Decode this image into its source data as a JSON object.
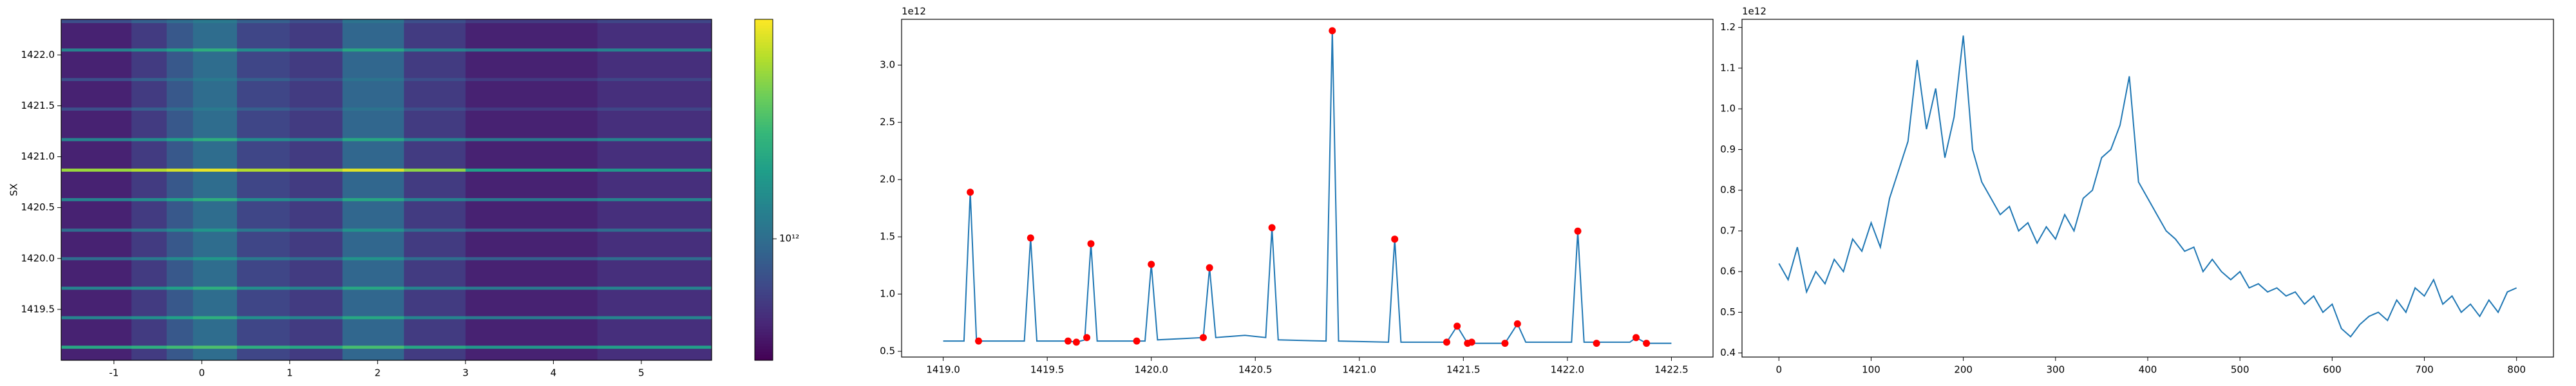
{
  "chart_data": [
    {
      "type": "heatmap",
      "ylabel": "SX",
      "xlim": [
        -1.6,
        5.8
      ],
      "ylim": [
        1419.0,
        1422.35
      ],
      "xticks": [
        -1,
        0,
        1,
        2,
        3,
        4,
        5
      ],
      "yticks": [
        1419.5,
        {
          "value": 1420,
          "label": "1420.0"
        },
        1420.5,
        {
          "value": 1421,
          "label": "1421.0"
        },
        1421.5,
        {
          "value": 1422,
          "label": "1422.0"
        }
      ],
      "x_edges": [
        -1.6,
        -0.8,
        -0.4,
        -0.1,
        0.4,
        1.0,
        1.6,
        2.3,
        3.0,
        4.5,
        5.8
      ],
      "y_edges": [
        1419.0,
        1419.115,
        1419.145,
        1419.405,
        1419.435,
        1419.695,
        1419.725,
        1419.985,
        1420.015,
        1420.265,
        1420.295,
        1420.565,
        1420.595,
        1420.855,
        1420.885,
        1421.155,
        1421.185,
        1421.455,
        1421.485,
        1421.745,
        1421.775,
        1422.035,
        1422.065,
        1422.315,
        1422.345,
        1422.35
      ],
      "z": [
        [
          600000000000.0,
          700000000000.0,
          850000000000.0,
          1000000000000.0,
          750000000000.0,
          700000000000.0,
          950000000000.0,
          700000000000.0,
          600000000000.0,
          650000000000.0
        ],
        [
          1600000000000.0,
          1700000000000.0,
          1900000000000.0,
          2000000000000.0,
          1700000000000.0,
          1600000000000.0,
          1950000000000.0,
          1600000000000.0,
          1400000000000.0,
          1500000000000.0
        ],
        [
          600000000000.0,
          700000000000.0,
          850000000000.0,
          1000000000000.0,
          750000000000.0,
          700000000000.0,
          950000000000.0,
          700000000000.0,
          600000000000.0,
          650000000000.0
        ],
        [
          1200000000000.0,
          1300000000000.0,
          1500000000000.0,
          1700000000000.0,
          1300000000000.0,
          1200000000000.0,
          1600000000000.0,
          1200000000000.0,
          1100000000000.0,
          1200000000000.0
        ],
        [
          600000000000.0,
          700000000000.0,
          850000000000.0,
          1000000000000.0,
          750000000000.0,
          700000000000.0,
          950000000000.0,
          700000000000.0,
          600000000000.0,
          650000000000.0
        ],
        [
          1200000000000.0,
          1300000000000.0,
          1500000000000.0,
          1700000000000.0,
          1300000000000.0,
          1200000000000.0,
          1600000000000.0,
          1200000000000.0,
          1100000000000.0,
          1200000000000.0
        ],
        [
          600000000000.0,
          700000000000.0,
          850000000000.0,
          1000000000000.0,
          750000000000.0,
          700000000000.0,
          950000000000.0,
          700000000000.0,
          600000000000.0,
          650000000000.0
        ],
        [
          1000000000000.0,
          1100000000000.0,
          1250000000000.0,
          1400000000000.0,
          1100000000000.0,
          1000000000000.0,
          1350000000000.0,
          1000000000000.0,
          900000000000.0,
          1000000000000.0
        ],
        [
          600000000000.0,
          700000000000.0,
          850000000000.0,
          1000000000000.0,
          750000000000.0,
          700000000000.0,
          950000000000.0,
          700000000000.0,
          600000000000.0,
          650000000000.0
        ],
        [
          1000000000000.0,
          1100000000000.0,
          1250000000000.0,
          1400000000000.0,
          1100000000000.0,
          1000000000000.0,
          1350000000000.0,
          1000000000000.0,
          900000000000.0,
          1000000000000.0
        ],
        [
          600000000000.0,
          700000000000.0,
          850000000000.0,
          1000000000000.0,
          750000000000.0,
          700000000000.0,
          950000000000.0,
          700000000000.0,
          600000000000.0,
          650000000000.0
        ],
        [
          1200000000000.0,
          1300000000000.0,
          1500000000000.0,
          1700000000000.0,
          1300000000000.0,
          1200000000000.0,
          1600000000000.0,
          1200000000000.0,
          1100000000000.0,
          1200000000000.0
        ],
        [
          600000000000.0,
          700000000000.0,
          850000000000.0,
          1000000000000.0,
          750000000000.0,
          700000000000.0,
          950000000000.0,
          700000000000.0,
          600000000000.0,
          650000000000.0
        ],
        [
          2600000000000.0,
          2800000000000.0,
          3100000000000.0,
          3300000000000.0,
          2800000000000.0,
          2700000000000.0,
          3200000000000.0,
          2500000000000.0,
          1500000000000.0,
          1400000000000.0
        ],
        [
          600000000000.0,
          700000000000.0,
          850000000000.0,
          1000000000000.0,
          750000000000.0,
          700000000000.0,
          950000000000.0,
          700000000000.0,
          600000000000.0,
          650000000000.0
        ],
        [
          1200000000000.0,
          1300000000000.0,
          1500000000000.0,
          1700000000000.0,
          1300000000000.0,
          1200000000000.0,
          1600000000000.0,
          1200000000000.0,
          1100000000000.0,
          1200000000000.0
        ],
        [
          600000000000.0,
          700000000000.0,
          850000000000.0,
          1000000000000.0,
          750000000000.0,
          700000000000.0,
          950000000000.0,
          700000000000.0,
          600000000000.0,
          650000000000.0
        ],
        [
          800000000000.0,
          900000000000.0,
          1000000000000.0,
          1100000000000.0,
          900000000000.0,
          800000000000.0,
          1050000000000.0,
          800000000000.0,
          700000000000.0,
          750000000000.0
        ],
        [
          600000000000.0,
          700000000000.0,
          850000000000.0,
          1000000000000.0,
          750000000000.0,
          700000000000.0,
          950000000000.0,
          700000000000.0,
          600000000000.0,
          650000000000.0
        ],
        [
          800000000000.0,
          900000000000.0,
          1000000000000.0,
          1100000000000.0,
          900000000000.0,
          800000000000.0,
          1050000000000.0,
          800000000000.0,
          700000000000.0,
          750000000000.0
        ],
        [
          600000000000.0,
          700000000000.0,
          850000000000.0,
          1000000000000.0,
          750000000000.0,
          700000000000.0,
          950000000000.0,
          700000000000.0,
          600000000000.0,
          650000000000.0
        ],
        [
          1200000000000.0,
          1300000000000.0,
          1500000000000.0,
          1700000000000.0,
          1300000000000.0,
          1200000000000.0,
          1600000000000.0,
          1200000000000.0,
          1100000000000.0,
          1200000000000.0
        ],
        [
          600000000000.0,
          700000000000.0,
          850000000000.0,
          1000000000000.0,
          750000000000.0,
          700000000000.0,
          950000000000.0,
          700000000000.0,
          600000000000.0,
          650000000000.0
        ],
        [
          800000000000.0,
          900000000000.0,
          1000000000000.0,
          1100000000000.0,
          900000000000.0,
          800000000000.0,
          1050000000000.0,
          800000000000.0,
          700000000000.0,
          750000000000.0
        ],
        [
          600000000000.0,
          700000000000.0,
          850000000000.0,
          1000000000000.0,
          750000000000.0,
          700000000000.0,
          950000000000.0,
          700000000000.0,
          600000000000.0,
          650000000000.0
        ]
      ],
      "zlim": [
        500000000000.0,
        3500000000000.0
      ],
      "zscale": "log",
      "colormap": "viridis",
      "cticks": [
        {
          "value": 1000000000000.0,
          "label": "10¹²"
        }
      ]
    },
    {
      "type": "line",
      "offset_label": "1e12",
      "xlim": [
        1418.8,
        1422.7
      ],
      "ylim": [
        0.45,
        3.4
      ],
      "xticks": [
        {
          "value": 1419,
          "label": "1419.0"
        },
        1419.5,
        {
          "value": 1420,
          "label": "1420.0"
        },
        1420.5,
        {
          "value": 1421,
          "label": "1421.0"
        },
        1421.5,
        {
          "value": 1422,
          "label": "1422.0"
        },
        1422.5
      ],
      "yticks": [
        0.5,
        {
          "value": 1,
          "label": "1.0"
        },
        1.5,
        {
          "value": 2,
          "label": "2.0"
        },
        2.5,
        {
          "value": 3,
          "label": "3.0"
        }
      ],
      "series": [
        {
          "type": "line",
          "color": "#1f77b4",
          "x": [
            1419.0,
            1419.1,
            1419.13,
            1419.16,
            1419.39,
            1419.42,
            1419.45,
            1419.6,
            1419.64,
            1419.68,
            1419.71,
            1419.74,
            1419.97,
            1420.0,
            1420.03,
            1420.25,
            1420.28,
            1420.31,
            1420.45,
            1420.55,
            1420.58,
            1420.61,
            1420.84,
            1420.87,
            1420.9,
            1421.14,
            1421.17,
            1421.2,
            1421.42,
            1421.47,
            1421.52,
            1421.7,
            1421.76,
            1421.8,
            1422.02,
            1422.05,
            1422.08,
            1422.3,
            1422.33,
            1422.38,
            1422.5
          ],
          "values": [
            0.59,
            0.59,
            1.89,
            0.59,
            0.59,
            1.49,
            0.59,
            0.59,
            0.58,
            0.6,
            1.44,
            0.59,
            0.59,
            1.26,
            0.6,
            0.62,
            1.23,
            0.62,
            0.64,
            0.62,
            1.58,
            0.6,
            0.59,
            3.3,
            0.59,
            0.58,
            1.48,
            0.58,
            0.58,
            0.72,
            0.57,
            0.57,
            0.74,
            0.58,
            0.58,
            1.55,
            0.58,
            0.58,
            0.62,
            0.57,
            0.57
          ]
        },
        {
          "type": "scatter",
          "color": "#ff0000",
          "x": [
            1419.13,
            1419.17,
            1419.42,
            1419.6,
            1419.64,
            1419.69,
            1419.71,
            1419.93,
            1420.0,
            1420.25,
            1420.28,
            1420.58,
            1420.87,
            1421.17,
            1421.42,
            1421.47,
            1421.52,
            1421.54,
            1421.7,
            1421.76,
            1422.05,
            1422.14,
            1422.33,
            1422.38
          ],
          "values": [
            1.89,
            0.59,
            1.49,
            0.59,
            0.58,
            0.62,
            1.44,
            0.59,
            1.26,
            0.62,
            1.23,
            1.58,
            3.3,
            1.48,
            0.58,
            0.72,
            0.57,
            0.58,
            0.57,
            0.74,
            1.55,
            0.57,
            0.62,
            0.57
          ]
        }
      ]
    },
    {
      "type": "line",
      "offset_label": "1e12",
      "xlim": [
        -40,
        840
      ],
      "ylim": [
        0.39,
        1.22
      ],
      "xticks": [
        0,
        100,
        200,
        300,
        400,
        500,
        600,
        700,
        800
      ],
      "yticks": [
        0.4,
        0.5,
        0.6,
        0.7,
        0.8,
        0.9,
        {
          "value": 1,
          "label": "1.0"
        },
        1.1,
        1.2
      ],
      "series": [
        {
          "type": "line",
          "color": "#1f77b4",
          "x": [
            0,
            10,
            20,
            30,
            40,
            50,
            60,
            70,
            80,
            90,
            100,
            110,
            120,
            130,
            140,
            150,
            160,
            170,
            180,
            190,
            200,
            210,
            220,
            230,
            240,
            250,
            260,
            270,
            280,
            290,
            300,
            310,
            320,
            330,
            340,
            350,
            360,
            370,
            380,
            390,
            400,
            410,
            420,
            430,
            440,
            450,
            460,
            470,
            480,
            490,
            500,
            510,
            520,
            530,
            540,
            550,
            560,
            570,
            580,
            590,
            600,
            610,
            620,
            630,
            640,
            650,
            660,
            670,
            680,
            690,
            700,
            710,
            720,
            730,
            740,
            750,
            760,
            770,
            780,
            790,
            800
          ],
          "values": [
            0.62,
            0.58,
            0.66,
            0.55,
            0.6,
            0.57,
            0.63,
            0.6,
            0.68,
            0.65,
            0.72,
            0.66,
            0.78,
            0.85,
            0.92,
            1.12,
            0.95,
            1.05,
            0.88,
            0.98,
            1.18,
            0.9,
            0.82,
            0.78,
            0.74,
            0.76,
            0.7,
            0.72,
            0.67,
            0.71,
            0.68,
            0.74,
            0.7,
            0.78,
            0.8,
            0.88,
            0.9,
            0.96,
            1.08,
            0.82,
            0.78,
            0.74,
            0.7,
            0.68,
            0.65,
            0.66,
            0.6,
            0.63,
            0.6,
            0.58,
            0.6,
            0.56,
            0.57,
            0.55,
            0.56,
            0.54,
            0.55,
            0.52,
            0.54,
            0.5,
            0.52,
            0.46,
            0.44,
            0.47,
            0.49,
            0.5,
            0.48,
            0.53,
            0.5,
            0.56,
            0.54,
            0.58,
            0.52,
            0.54,
            0.5,
            0.52,
            0.49,
            0.53,
            0.5,
            0.55,
            0.56
          ]
        }
      ]
    }
  ]
}
